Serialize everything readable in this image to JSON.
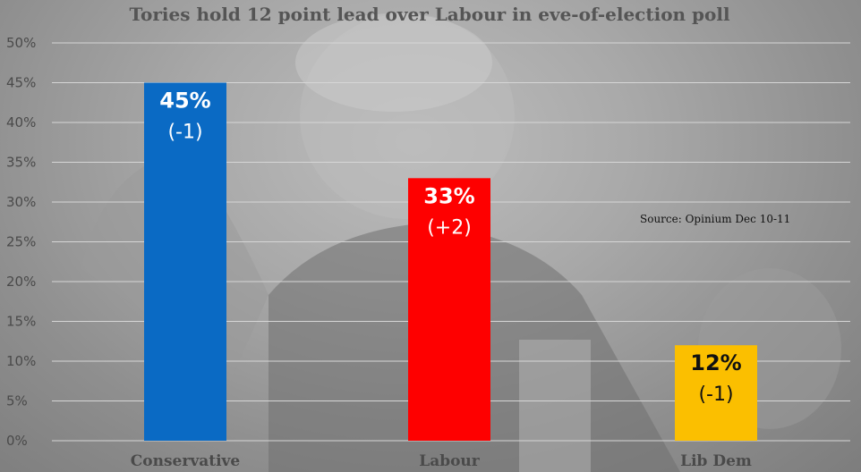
{
  "chart_data": {
    "type": "bar",
    "title": "Tories hold 12 point lead over Labour in eve-of-election poll",
    "source": "Source: Opinium Dec 10-11",
    "categories": [
      "Conservative",
      "Labour",
      "Lib Dem"
    ],
    "values": [
      45,
      33,
      12
    ],
    "value_labels": [
      "45%",
      "33%",
      "12%"
    ],
    "change_labels": [
      "(-1)",
      "(+2)",
      "(-1)"
    ],
    "colors": [
      "#0a6ac4",
      "#fe0000",
      "#fbbf00"
    ],
    "label_colors": [
      "#ffffff",
      "#ffffff",
      "#111111"
    ],
    "ylim": [
      0,
      50
    ],
    "yticks": [
      0,
      5,
      10,
      15,
      20,
      25,
      30,
      35,
      40,
      45,
      50
    ],
    "ytick_labels": [
      "0%",
      "5%",
      "10%",
      "15%",
      "20%",
      "25%",
      "30%",
      "35%",
      "40%",
      "45%",
      "50%"
    ],
    "grid": true
  }
}
